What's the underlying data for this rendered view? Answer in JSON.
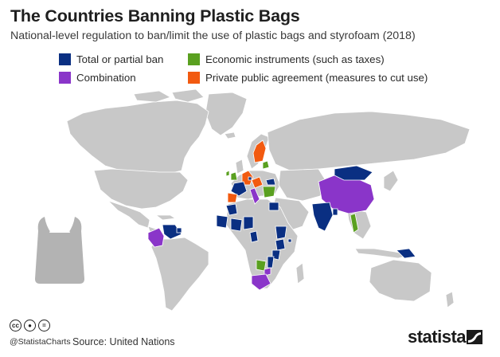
{
  "header": {
    "title": "The Countries Banning Plastic Bags",
    "subtitle": "National-level regulation to ban/limit the use of plastic bags and styrofoam (2018)"
  },
  "legend": [
    {
      "label": "Total or partial ban",
      "color": "#0a2f82"
    },
    {
      "label": "Economic instruments (such as taxes)",
      "color": "#5aa020"
    },
    {
      "label": "Combination",
      "color": "#8a35c9"
    },
    {
      "label": "Private public agreement (measures to cut use)",
      "color": "#f25a10"
    }
  ],
  "map": {
    "land_color": "#c8c8c8",
    "icon": "plastic-bag-icon"
  },
  "footer": {
    "license_icons": [
      "cc-icon",
      "by-icon",
      "nd-icon"
    ],
    "handle": "@StatistaCharts",
    "source": "Source: United Nations",
    "brand": "statista"
  }
}
